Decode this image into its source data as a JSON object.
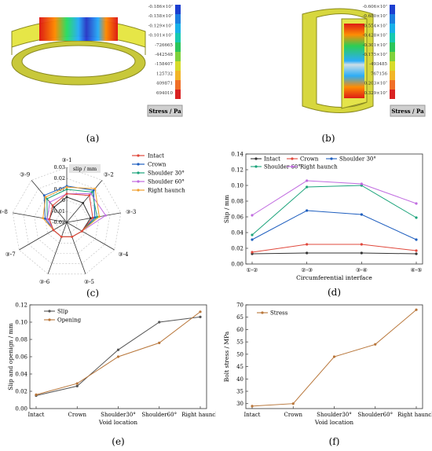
{
  "panel_labels": [
    "(a)",
    "(b)",
    "(c)",
    "(d)",
    "(e)",
    "(f)"
  ],
  "colors": {
    "black": "#333333",
    "blue": "#1f5fbf",
    "red": "#e0483c",
    "green": "#1aa37a",
    "purple": "#c06be0",
    "orange": "#f0a030",
    "slip": "#555555",
    "opening": "#b8763a"
  },
  "contour": {
    "title": "Stress / Pa",
    "a_labels": [
      "-0.186×10⁷",
      "-0.158×10⁷",
      "-0.129×10⁷",
      "-0.101×10⁷",
      "-726665",
      "-442548",
      "-158407",
      "125732",
      "409871",
      "694010"
    ],
    "b_labels": [
      "-0.606×10⁷",
      "-0.680×10⁷",
      "-0.554×10⁷",
      "-0.428×10⁷",
      "-0.301×10⁷",
      "-0.175×10⁷",
      "-493485",
      "767156",
      "0.203×10⁷",
      "0.329×10⁷"
    ]
  },
  "chart_data": [
    {
      "id": "c",
      "type": "radar",
      "axes": [
        "③-1",
        "③-2",
        "③-3",
        "③-4",
        "③-5",
        "③-6",
        "③-7",
        "③-8",
        "③-9"
      ],
      "rlim": [
        -0.02,
        0.03
      ],
      "ticks": [
        "0.03",
        "0.02",
        "0.01",
        "0",
        "-0.01",
        "-0.02"
      ],
      "unit_label": "slip / mm",
      "series": [
        {
          "name": "Intact",
          "color": "#333333",
          "values": [
            0.003,
            0.003,
            0.002,
            -0.004,
            -0.006,
            -0.006,
            -0.006,
            -0.004,
            -0.002
          ]
        },
        {
          "name": "Crown",
          "color": "#1f5fbf",
          "values": [
            0.013,
            0.018,
            0.006,
            -0.004,
            -0.006,
            -0.006,
            -0.006,
            0.0,
            0.012
          ]
        },
        {
          "name": "Shoulder 30°",
          "color": "#1aa37a",
          "values": [
            0.01,
            0.016,
            0.008,
            -0.004,
            -0.006,
            -0.006,
            -0.006,
            -0.002,
            0.008
          ]
        },
        {
          "name": "Shoulder 60°",
          "color": "#c06be0",
          "values": [
            0.006,
            0.014,
            0.016,
            -0.004,
            -0.006,
            -0.006,
            -0.006,
            -0.002,
            0.004
          ]
        },
        {
          "name": "Right haunch",
          "color": "#f0a030",
          "values": [
            0.012,
            0.02,
            0.01,
            -0.004,
            -0.006,
            -0.006,
            -0.006,
            0.002,
            0.01
          ]
        },
        {
          "name": "",
          "color": "#e0483c",
          "values": [
            0.006,
            0.012,
            0.004,
            -0.004,
            -0.006,
            -0.006,
            -0.006,
            -0.004,
            0.0
          ]
        }
      ]
    },
    {
      "id": "d",
      "type": "line",
      "categories": [
        "①-②",
        "②-③",
        "③-④",
        "④-⑤"
      ],
      "xlabel": "Circumferential interface",
      "ylabel": "Slip / mm",
      "ylim": [
        0,
        0.14
      ],
      "yticks": [
        "0.00",
        "0.02",
        "0.04",
        "0.06",
        "0.08",
        "0.10",
        "0.12",
        "0.14"
      ],
      "series": [
        {
          "name": "Intact",
          "color": "#333333",
          "values": [
            0.013,
            0.014,
            0.014,
            0.013
          ]
        },
        {
          "name": "Crown",
          "color": "#e0483c",
          "values": [
            0.015,
            0.025,
            0.025,
            0.017
          ]
        },
        {
          "name": "Shoulder 30°",
          "color": "#1f5fbf",
          "values": [
            0.031,
            0.068,
            0.063,
            0.031
          ]
        },
        {
          "name": "Shoulder 60°",
          "color": "#1aa37a",
          "values": [
            0.037,
            0.098,
            0.1,
            0.059
          ]
        },
        {
          "name": "Right haunch",
          "color": "#c06be0",
          "values": [
            0.062,
            0.106,
            0.102,
            0.077
          ]
        }
      ]
    },
    {
      "id": "e",
      "type": "line",
      "categories": [
        "Intact",
        "Crown",
        "Shoulder30°",
        "Shoulder60°",
        "Right haunch"
      ],
      "xlabel": "Void location",
      "ylabel": "Slip and openign / mm",
      "ylim": [
        0,
        0.12
      ],
      "yticks": [
        "0.00",
        "0.02",
        "0.04",
        "0.06",
        "0.08",
        "0.10",
        "0.12"
      ],
      "series": [
        {
          "name": "Slip",
          "color": "#555555",
          "values": [
            0.015,
            0.026,
            0.068,
            0.1,
            0.106
          ]
        },
        {
          "name": "Opening",
          "color": "#b8763a",
          "values": [
            0.016,
            0.029,
            0.06,
            0.076,
            0.112
          ]
        }
      ]
    },
    {
      "id": "f",
      "type": "line",
      "categories": [
        "Intact",
        "Crown",
        "Shoulder30°",
        "Shoulder60°",
        "Right haunch"
      ],
      "xlabel": "Void location",
      "ylabel": "Bolt stress / MPa",
      "ylim": [
        28,
        70
      ],
      "yticks": [
        "30",
        "35",
        "40",
        "45",
        "50",
        "55",
        "60",
        "65",
        "70"
      ],
      "series": [
        {
          "name": "Stress",
          "color": "#b8763a",
          "values": [
            29,
            30,
            49,
            54,
            68
          ]
        }
      ]
    }
  ]
}
